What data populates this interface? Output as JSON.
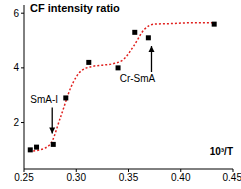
{
  "chart_data": {
    "type": "scatter",
    "title": "CF intensity ratio",
    "x_label": "10³/T",
    "series": [
      {
        "type": "scatter",
        "color": "#000000",
        "marker": "square",
        "x": [
          0.256,
          0.262,
          0.278,
          0.29,
          0.312,
          0.34,
          0.356,
          0.369,
          0.432
        ],
        "values": [
          1.0,
          1.1,
          1.2,
          2.9,
          4.2,
          4.0,
          5.3,
          5.1,
          5.6
        ]
      },
      {
        "type": "line",
        "color": "#e0201e",
        "line_style": "dotted",
        "x": [
          0.255,
          0.265,
          0.275,
          0.285,
          0.295,
          0.305,
          0.315,
          0.325,
          0.335,
          0.345,
          0.355,
          0.365,
          0.375,
          0.39,
          0.41,
          0.43
        ],
        "values": [
          0.95,
          1.0,
          1.2,
          2.2,
          3.3,
          3.9,
          4.05,
          4.1,
          4.15,
          4.3,
          4.8,
          5.4,
          5.6,
          5.62,
          5.65,
          5.65
        ]
      }
    ],
    "annotations": [
      {
        "text": "SmA-I",
        "x": 0.277,
        "y": 1.6
      },
      {
        "text": "Cr-SmA",
        "x": 0.372,
        "y": 4.8
      }
    ],
    "xlim": [
      0.25,
      0.45
    ],
    "xticks": [
      0.25,
      {
        "value": 0.3,
        "label": "0.30"
      },
      0.35,
      {
        "value": 0.4,
        "label": "0.40"
      },
      0.45
    ],
    "ylim": [
      0.3,
      6.3
    ],
    "yticks": [
      2,
      4,
      6
    ],
    "grid": false
  }
}
